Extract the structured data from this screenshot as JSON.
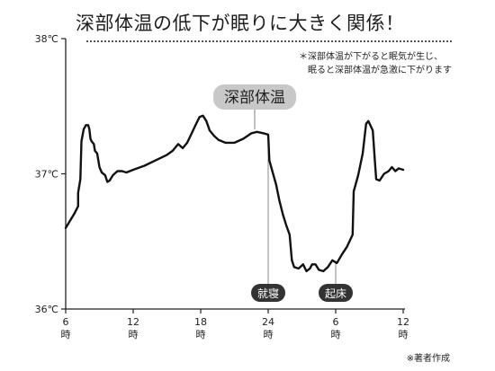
{
  "title": "深部体温の低下が眠りに大きく関係！",
  "note": {
    "line1": "＊深部体温が下がると眠気が生じ、",
    "line2": "眠ると深部体温が急激に下がります"
  },
  "source": "※著者作成",
  "chart_data": {
    "type": "line",
    "ylim": [
      36,
      38
    ],
    "yticks": [
      {
        "value": 36,
        "label": "36℃"
      },
      {
        "value": 37,
        "label": "37℃"
      },
      {
        "value": 38,
        "label": "38℃"
      }
    ],
    "xlim": [
      6,
      36
    ],
    "xticks": [
      {
        "value": 6,
        "hour": "6",
        "suffix": "時"
      },
      {
        "value": 12,
        "hour": "12",
        "suffix": "時"
      },
      {
        "value": 18,
        "hour": "18",
        "suffix": "時"
      },
      {
        "value": 24,
        "hour": "24",
        "suffix": "時"
      },
      {
        "value": 30,
        "hour": "6",
        "suffix": "時"
      },
      {
        "value": 36,
        "hour": "12",
        "suffix": "時"
      }
    ],
    "series": [
      {
        "name": "深部体温",
        "color": "#111111",
        "points": [
          [
            6.0,
            36.6
          ],
          [
            6.8,
            36.71
          ],
          [
            7.1,
            36.76
          ],
          [
            7.1,
            36.86
          ],
          [
            7.3,
            36.96
          ],
          [
            7.4,
            37.24
          ],
          [
            7.6,
            37.33
          ],
          [
            7.8,
            37.36
          ],
          [
            8.0,
            37.36
          ],
          [
            8.1,
            37.33
          ],
          [
            8.2,
            37.26
          ],
          [
            8.3,
            37.24
          ],
          [
            8.5,
            37.22
          ],
          [
            8.6,
            37.17
          ],
          [
            8.8,
            37.15
          ],
          [
            9.0,
            37.05
          ],
          [
            9.2,
            37.01
          ],
          [
            9.5,
            36.99
          ],
          [
            9.7,
            36.94
          ],
          [
            9.9,
            36.95
          ],
          [
            10.2,
            36.99
          ],
          [
            10.6,
            37.02
          ],
          [
            11.0,
            37.02
          ],
          [
            11.4,
            37.01
          ],
          [
            12.0,
            37.03
          ],
          [
            13.0,
            37.06
          ],
          [
            14.0,
            37.1
          ],
          [
            15.0,
            37.14
          ],
          [
            15.5,
            37.17
          ],
          [
            16.0,
            37.22
          ],
          [
            16.4,
            37.19
          ],
          [
            16.8,
            37.23
          ],
          [
            17.2,
            37.3
          ],
          [
            17.6,
            37.37
          ],
          [
            17.9,
            37.42
          ],
          [
            18.2,
            37.43
          ],
          [
            18.5,
            37.39
          ],
          [
            18.8,
            37.32
          ],
          [
            19.2,
            37.28
          ],
          [
            19.6,
            37.25
          ],
          [
            20.2,
            37.23
          ],
          [
            21.0,
            37.23
          ],
          [
            21.8,
            37.26
          ],
          [
            22.5,
            37.3
          ],
          [
            23.0,
            37.31
          ],
          [
            23.6,
            37.3
          ],
          [
            24.0,
            37.29
          ],
          [
            24.1,
            37.1
          ],
          [
            24.4,
            37.01
          ],
          [
            24.7,
            36.92
          ],
          [
            25.0,
            36.8
          ],
          [
            25.3,
            36.7
          ],
          [
            25.6,
            36.62
          ],
          [
            25.9,
            36.55
          ],
          [
            26.1,
            36.36
          ],
          [
            26.3,
            36.31
          ],
          [
            26.7,
            36.3
          ],
          [
            27.1,
            36.33
          ],
          [
            27.4,
            36.28
          ],
          [
            27.7,
            36.3
          ],
          [
            27.9,
            36.33
          ],
          [
            28.2,
            36.33
          ],
          [
            28.5,
            36.29
          ],
          [
            28.9,
            36.28
          ],
          [
            29.3,
            36.31
          ],
          [
            29.7,
            36.36
          ],
          [
            30.1,
            36.34
          ],
          [
            30.6,
            36.41
          ],
          [
            31.0,
            36.46
          ],
          [
            31.5,
            36.55
          ],
          [
            31.6,
            36.87
          ],
          [
            32.0,
            36.99
          ],
          [
            32.4,
            37.15
          ],
          [
            32.7,
            37.37
          ],
          [
            32.9,
            37.39
          ],
          [
            33.3,
            37.32
          ],
          [
            33.5,
            37.07
          ],
          [
            33.6,
            36.96
          ],
          [
            33.9,
            36.95
          ],
          [
            34.3,
            37.0
          ],
          [
            34.7,
            37.02
          ],
          [
            35.0,
            37.05
          ],
          [
            35.3,
            37.02
          ],
          [
            35.6,
            37.04
          ],
          [
            36.0,
            37.03
          ]
        ]
      }
    ],
    "callout": {
      "label": "深部体温",
      "x": 22.8,
      "y": 37.31
    },
    "events": [
      {
        "label": "就寝",
        "x": 24.0,
        "line_from": 37.29
      },
      {
        "label": "起床",
        "x": 30.0,
        "line_from": 36.34
      }
    ]
  }
}
